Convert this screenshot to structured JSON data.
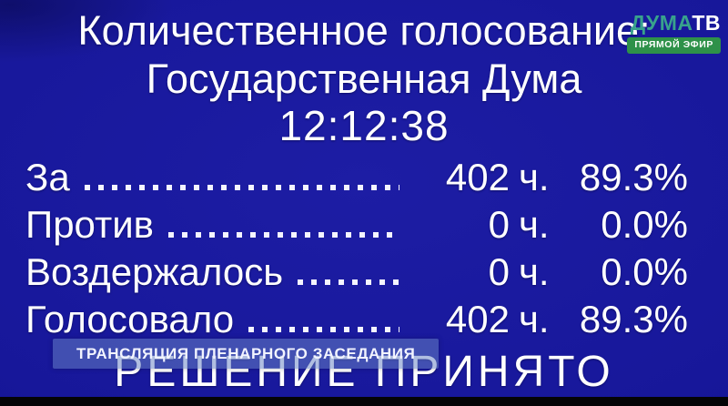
{
  "header": {
    "title_line1": "Количественное голосование:",
    "title_line2": "Государственная Дума",
    "clock": "12:12:38"
  },
  "logo": {
    "brand_primary": "ДУМА",
    "brand_secondary": "ТВ",
    "live_badge": "ПРЯМОЙ ЭФИР"
  },
  "votes": {
    "rows": [
      {
        "label": "За",
        "count": "402",
        "unit": "ч.",
        "percent": "89.3%"
      },
      {
        "label": "Против",
        "count": "0",
        "unit": "ч.",
        "percent": "0.0%"
      },
      {
        "label": "Воздержалось",
        "count": "0",
        "unit": "ч.",
        "percent": "0.0%"
      },
      {
        "label": "Голосовало",
        "count": "402",
        "unit": "ч.",
        "percent": "89.3%"
      }
    ]
  },
  "footer": {
    "caption": "ТРАНСЛЯЦИЯ ПЛЕНАРНОГО ЗАСЕДАНИЯ",
    "decision": "РЕШЕНИЕ ПРИНЯТО"
  },
  "colors": {
    "background": "#17179a",
    "text": "#ffffff",
    "brand_teal": "#38a28c",
    "live_green": "#2e9149",
    "caption_bg": "#6882c6",
    "bottom_bar": "#040406"
  }
}
